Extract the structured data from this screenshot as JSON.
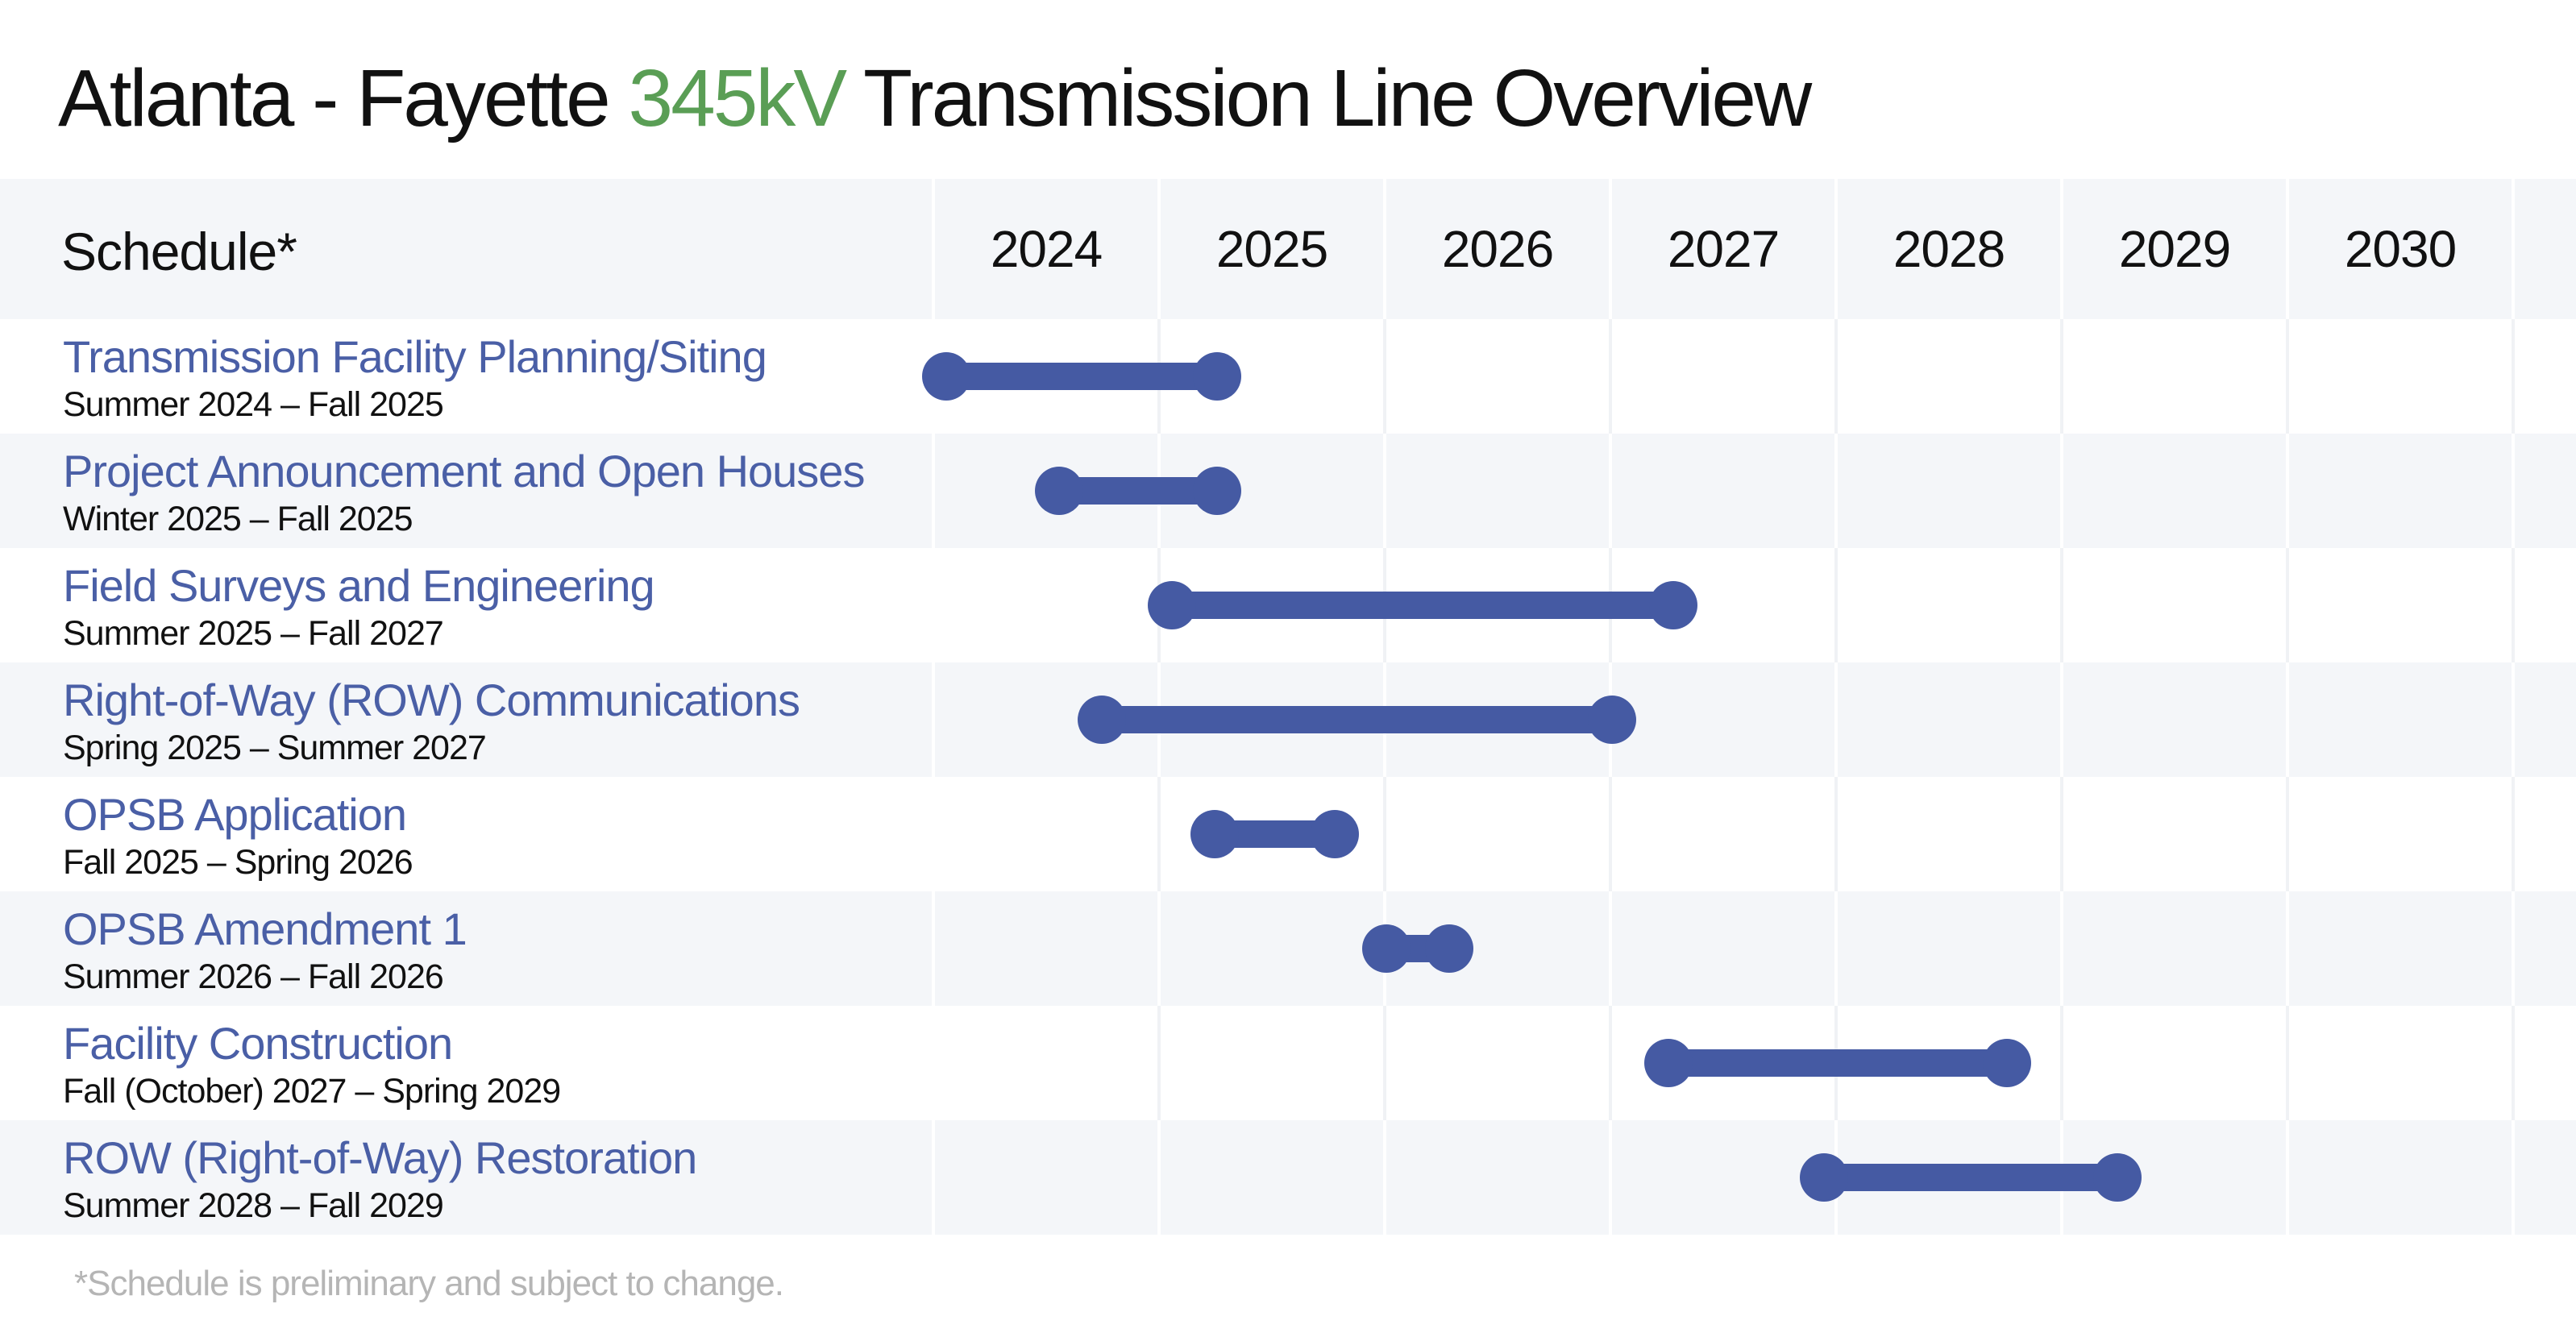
{
  "header": {
    "title_prefix": "Atlanta - Fayette ",
    "title_accent": "345kV",
    "title_suffix": " Transmission Line Overview"
  },
  "schedule": {
    "label": "Schedule*",
    "years": [
      "2024",
      "2025",
      "2026",
      "2027",
      "2028",
      "2029",
      "2030"
    ],
    "tasks": [
      {
        "name": "Transmission Facility Planning/Siting",
        "dates": "Summer 2024 – Fall 2025",
        "start": 2024.05,
        "end": 2025.25
      },
      {
        "name": "Project Announcement and Open Houses",
        "dates": "Winter 2025 – Fall 2025",
        "start": 2024.55,
        "end": 2025.25
      },
      {
        "name": "Field Surveys and Engineering",
        "dates": "Summer 2025 – Fall 2027",
        "start": 2025.05,
        "end": 2027.27
      },
      {
        "name": "Right-of-Way (ROW) Communications",
        "dates": "Spring 2025 – Summer 2027",
        "start": 2024.74,
        "end": 2027.0
      },
      {
        "name": "OPSB Application",
        "dates": "Fall 2025 – Spring 2026",
        "start": 2025.24,
        "end": 2025.77
      },
      {
        "name": "OPSB Amendment 1",
        "dates": "Summer 2026 – Fall 2026",
        "start": 2026.0,
        "end": 2026.28
      },
      {
        "name": "Facility Construction",
        "dates": "Fall (October) 2027 – Spring 2029",
        "start": 2027.25,
        "end": 2028.75
      },
      {
        "name": "ROW (Right-of-Way) Restoration",
        "dates": "Summer 2028 – Fall 2029",
        "start": 2027.94,
        "end": 2029.24
      }
    ]
  },
  "footnote": "*Schedule is preliminary and subject to change.",
  "colors": {
    "accent_green": "#5a9e55",
    "task_blue": "#4a5fa6",
    "bar_blue": "#455aa3",
    "stripe": "#f4f6f9"
  }
}
